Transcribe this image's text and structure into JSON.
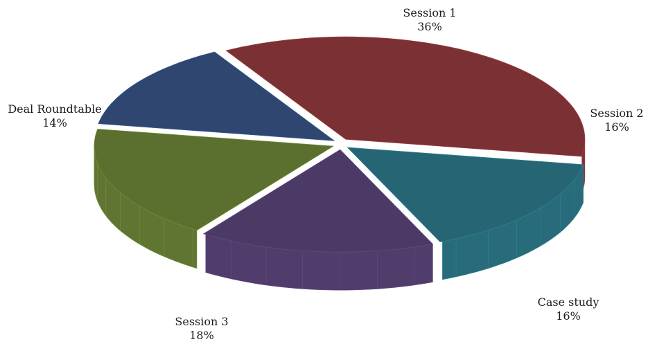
{
  "chart_data": {
    "type": "pie",
    "style": "3d-exploded",
    "legend": "none",
    "slices": [
      {
        "label": "Session 1",
        "value": 36,
        "display": "36%",
        "color": "#7b3034"
      },
      {
        "label": "Session 2",
        "value": 16,
        "display": "16%",
        "color": "#266674"
      },
      {
        "label": "Case study",
        "value": 16,
        "display": "16%",
        "color": "#4c3a66"
      },
      {
        "label": "Session 3",
        "value": 18,
        "display": "18%",
        "color": "#5b6f2f"
      },
      {
        "label": "Deal Roundtable",
        "value": 14,
        "display": "14%",
        "color": "#2e4670"
      }
    ]
  }
}
